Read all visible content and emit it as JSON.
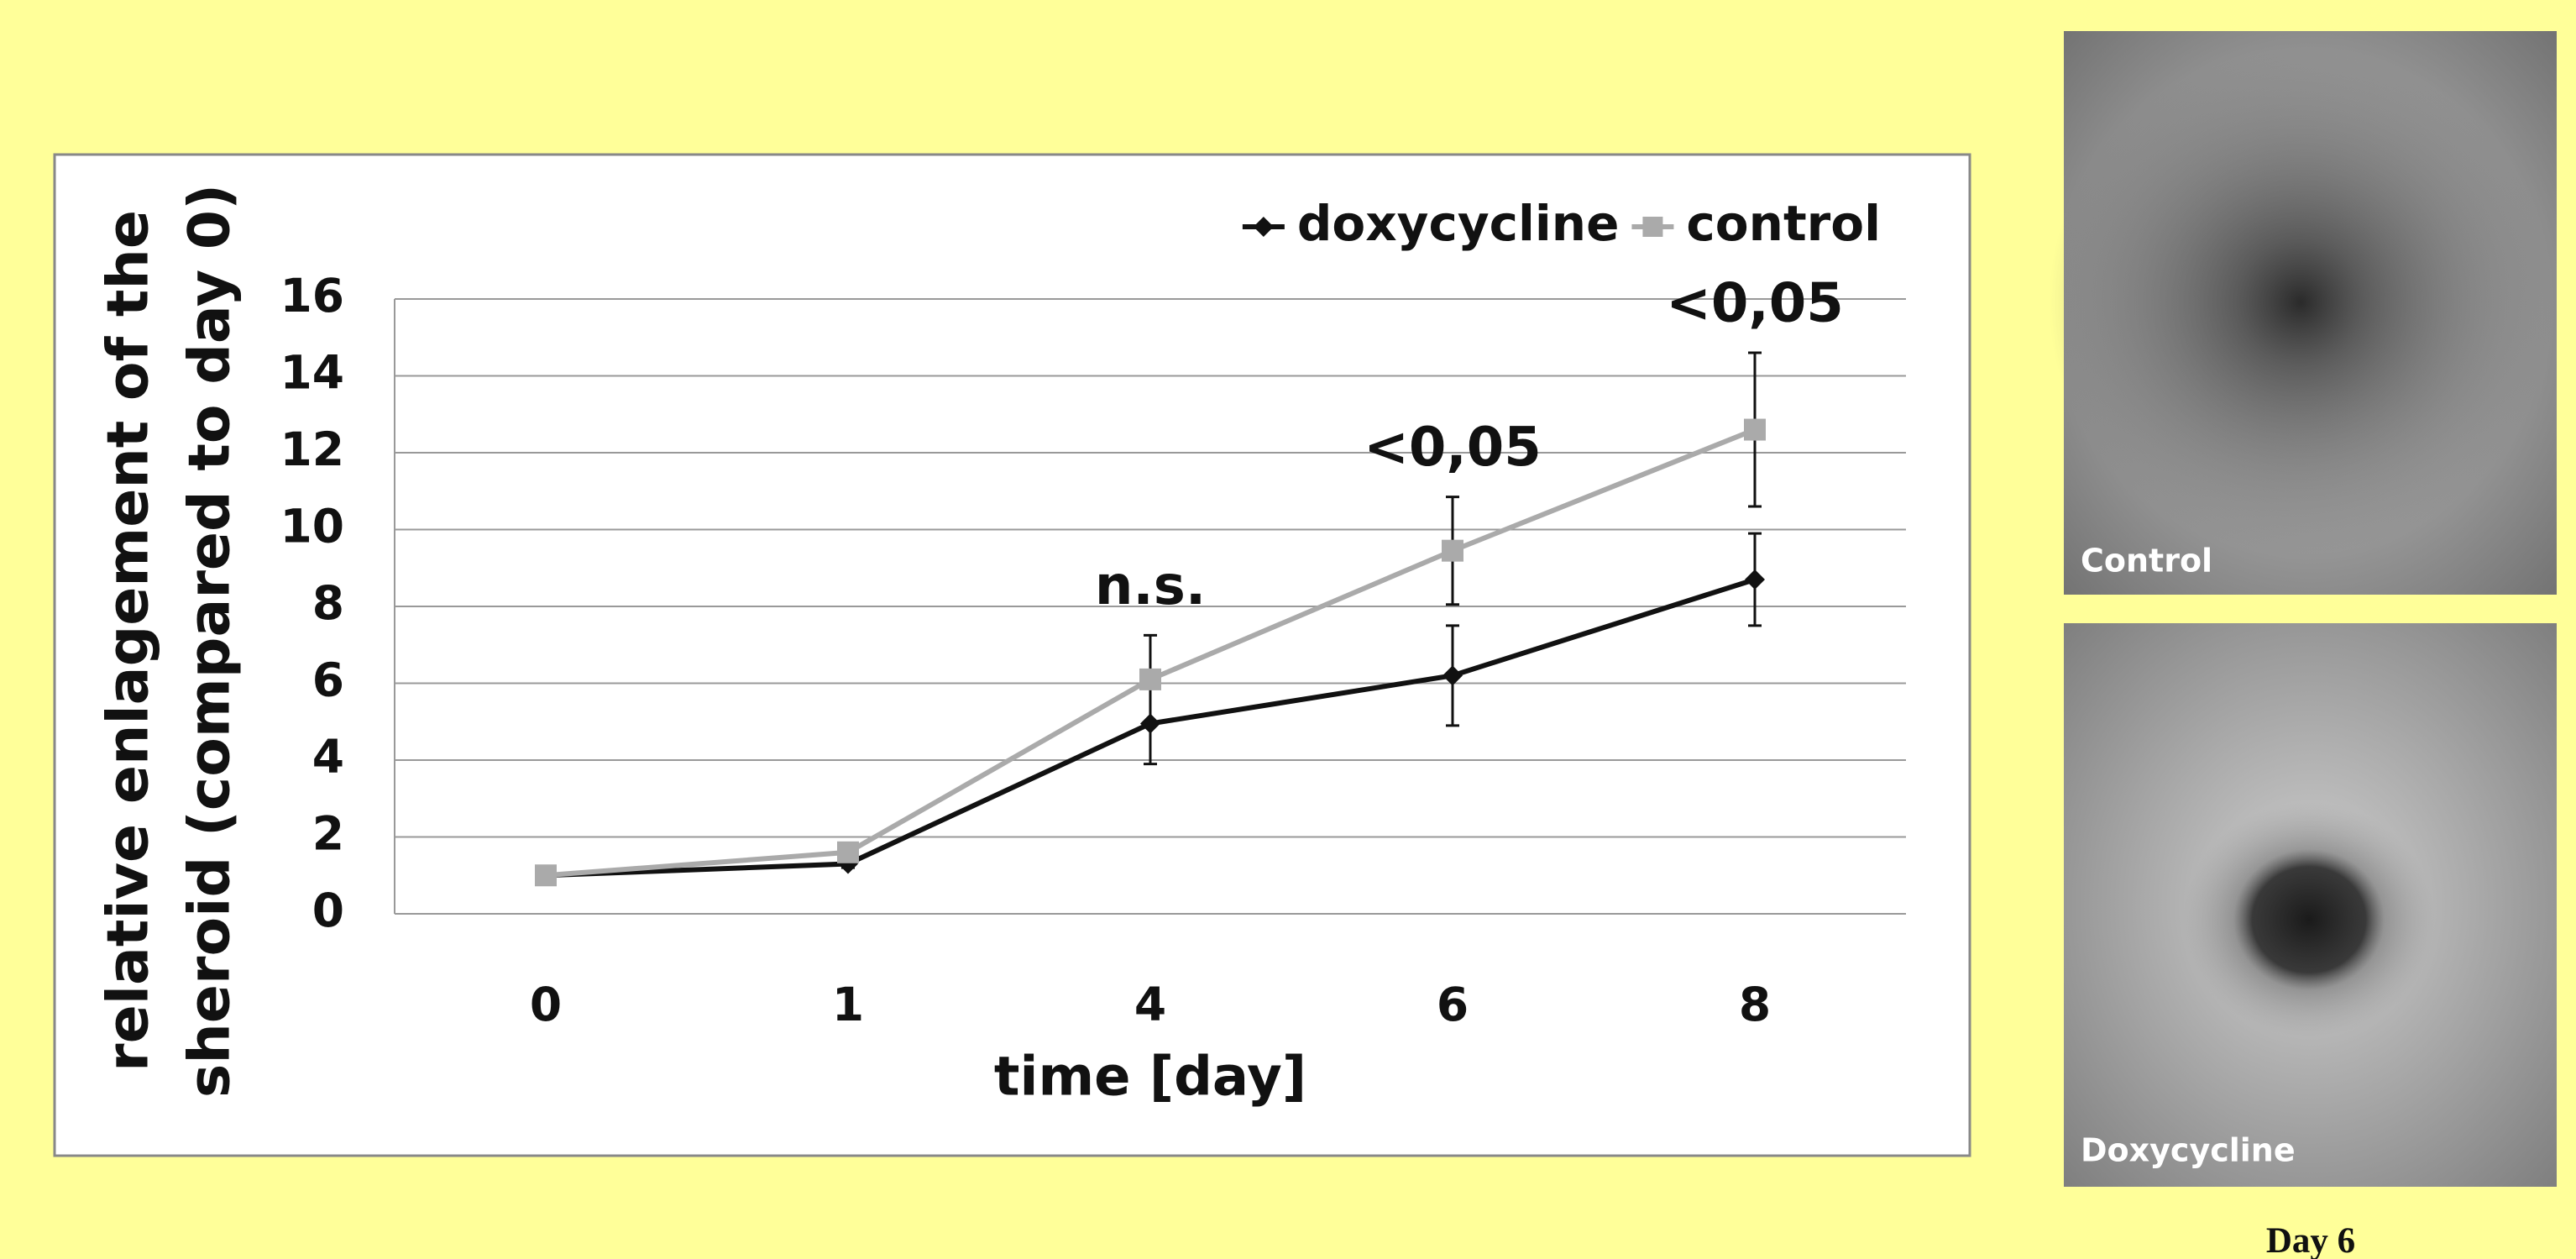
{
  "chart_data": {
    "type": "line",
    "ylabel": [
      "relative enlagement of the",
      "sheroid (compared to day 0)"
    ],
    "xlabel": "time [day]",
    "categories": [
      "0",
      "1",
      "4",
      "6",
      "8"
    ],
    "series": [
      {
        "name": "doxycycline",
        "color": "#111111",
        "marker": "diamond",
        "values": [
          1,
          1.3,
          4.95,
          6.2,
          8.7
        ],
        "errors": [
          0,
          0.1,
          1.05,
          1.3,
          1.2
        ]
      },
      {
        "name": "control",
        "color": "#aaaaaa",
        "marker": "square",
        "values": [
          1,
          1.6,
          6.1,
          9.45,
          12.6
        ],
        "errors": [
          0,
          0.1,
          1.15,
          1.4,
          2.0
        ]
      }
    ],
    "annotations": [
      "n.s.",
      "<0,05",
      "<0,05"
    ],
    "ylim": [
      0,
      16
    ],
    "yticks": [
      0,
      2,
      4,
      6,
      8,
      10,
      12,
      14,
      16
    ],
    "grid": true,
    "legend": "top-right"
  },
  "images": {
    "top_label": "Control",
    "bottom_label": "Doxycycline",
    "caption": "Day 6"
  }
}
